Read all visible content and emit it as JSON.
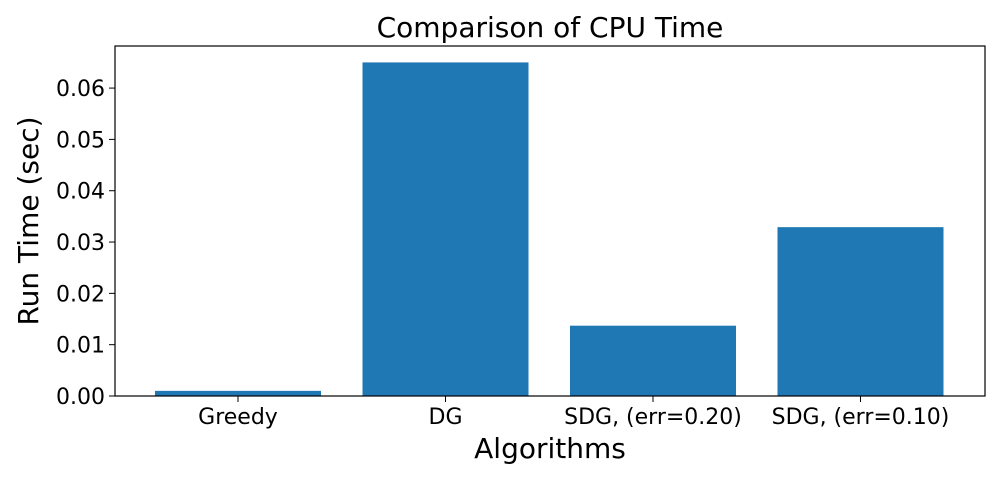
{
  "chart_data": {
    "type": "bar",
    "title": "Comparison of CPU Time",
    "xlabel": "Algorithms",
    "ylabel": "Run Time (sec)",
    "categories": [
      "Greedy",
      "DG",
      "SDG, (err=0.20)",
      "SDG, (err=0.10)"
    ],
    "values": [
      0.001,
      0.065,
      0.0137,
      0.0329
    ],
    "ylim": [
      0,
      0.0682
    ],
    "yticks": [
      0.0,
      0.01,
      0.02,
      0.03,
      0.04,
      0.05,
      0.06
    ],
    "ytick_labels": [
      "0.00",
      "0.01",
      "0.02",
      "0.03",
      "0.04",
      "0.05",
      "0.06"
    ],
    "grid": false,
    "bar_color": "#1f77b4"
  }
}
